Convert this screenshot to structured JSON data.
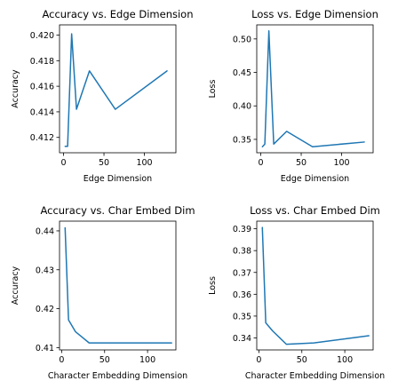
{
  "chart_data": [
    {
      "type": "line",
      "title": "Accuracy vs. Edge Dimension",
      "xlabel": "Edge Dimension",
      "ylabel": "Accuracy",
      "xlim": [
        -5,
        139
      ],
      "ylim": [
        0.4108,
        0.4208
      ],
      "xticks": [
        0,
        50,
        100
      ],
      "yticks": [
        0.412,
        0.414,
        0.416,
        0.418,
        0.42
      ],
      "ytick_format": 3,
      "grid": false,
      "color": "#1f77b4",
      "x": [
        2,
        5,
        10,
        16,
        32,
        64,
        128
      ],
      "y": [
        0.4113,
        0.4113,
        0.4201,
        0.4142,
        0.4172,
        0.4142,
        0.4172
      ]
    },
    {
      "type": "line",
      "title": "Loss vs. Edge Dimension",
      "xlabel": "Edge Dimension",
      "ylabel": "Loss",
      "xlim": [
        -5,
        139
      ],
      "ylim": [
        0.33,
        0.521
      ],
      "xticks": [
        0,
        50,
        100
      ],
      "yticks": [
        0.35,
        0.4,
        0.45,
        0.5
      ],
      "ytick_format": 2,
      "grid": false,
      "color": "#1f77b4",
      "x": [
        2,
        5,
        10,
        16,
        32,
        64,
        128
      ],
      "y": [
        0.339,
        0.343,
        0.512,
        0.343,
        0.362,
        0.339,
        0.346
      ]
    },
    {
      "type": "line",
      "title": "Accuracy vs. Char Embed Dim",
      "xlabel": "Character Embedding Dimension",
      "ylabel": "Accuracy",
      "xlim": [
        -2.5,
        133
      ],
      "ylim": [
        0.4094,
        0.4425
      ],
      "xticks": [
        0,
        50,
        100
      ],
      "yticks": [
        0.41,
        0.42,
        0.43,
        0.44
      ],
      "ytick_format": 2,
      "grid": false,
      "color": "#1f77b4",
      "x": [
        4,
        8,
        16,
        32,
        64,
        128
      ],
      "y": [
        0.4408,
        0.4171,
        0.4141,
        0.4112,
        0.4112,
        0.4112
      ]
    },
    {
      "type": "line",
      "title": "Loss vs. Char Embed Dim",
      "xlabel": "Character Embedding Dimension",
      "ylabel": "Loss",
      "xlim": [
        -2.5,
        133
      ],
      "ylim": [
        0.3345,
        0.3935
      ],
      "xticks": [
        0,
        50,
        100
      ],
      "yticks": [
        0.34,
        0.35,
        0.36,
        0.37,
        0.38,
        0.39
      ],
      "ytick_format": 2,
      "grid": false,
      "color": "#1f77b4",
      "x": [
        4,
        8,
        16,
        32,
        64,
        128
      ],
      "y": [
        0.3906,
        0.3469,
        0.3432,
        0.3371,
        0.3377,
        0.341
      ]
    }
  ]
}
